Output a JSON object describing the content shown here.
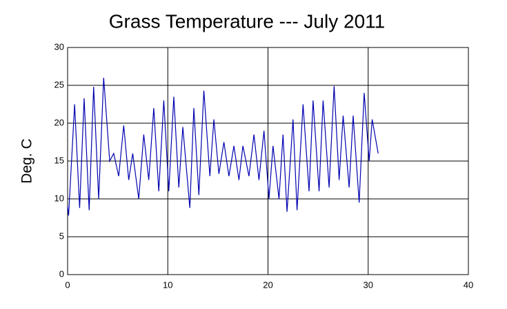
{
  "chart_data": {
    "type": "line",
    "title": "Grass Temperature --- July 2011",
    "ylabel": "Deg. C",
    "x": [
      0.0,
      0.1,
      0.7,
      1.2,
      1.65,
      2.15,
      2.6,
      3.1,
      3.6,
      4.2,
      4.6,
      5.1,
      5.6,
      6.1,
      6.5,
      7.1,
      7.6,
      8.1,
      8.6,
      9.1,
      9.6,
      10.1,
      10.6,
      11.1,
      11.5,
      12.2,
      12.6,
      13.1,
      13.6,
      14.2,
      14.6,
      15.1,
      15.6,
      16.1,
      16.6,
      17.1,
      17.5,
      18.1,
      18.6,
      19.1,
      19.6,
      20.1,
      20.5,
      21.1,
      21.5,
      21.9,
      22.5,
      22.9,
      23.5,
      24.1,
      24.5,
      25.1,
      25.5,
      26.1,
      26.6,
      27.1,
      27.5,
      28.1,
      28.5,
      29.1,
      29.6,
      30.1,
      30.4,
      31.0
    ],
    "series": [
      {
        "name": "Grass Temperature",
        "color": "#0000b0",
        "values": [
          9,
          7.8,
          22.5,
          8.8,
          23.3,
          8.5,
          24.8,
          10,
          26,
          15,
          16,
          13,
          19.7,
          12.5,
          16,
          10,
          18.5,
          12.5,
          22,
          11,
          23,
          11,
          23.5,
          11.5,
          19.5,
          8.8,
          22,
          10.5,
          24.3,
          13,
          20.5,
          13.3,
          17.5,
          13,
          17,
          12.5,
          17,
          13,
          18.5,
          12.5,
          19,
          10,
          17,
          10,
          18.5,
          8.3,
          20.5,
          8.5,
          22.5,
          11,
          23,
          11,
          23,
          11.5,
          24.9,
          12.5,
          21,
          11.5,
          21,
          9.5,
          24,
          15,
          20.5,
          16
        ]
      }
    ],
    "xlim": [
      0,
      40
    ],
    "xticks": [
      0,
      10,
      20,
      30,
      40
    ],
    "ylim": [
      0,
      30
    ],
    "yticks": [
      0,
      5,
      10,
      15,
      20,
      25,
      30
    ],
    "grid": true
  }
}
